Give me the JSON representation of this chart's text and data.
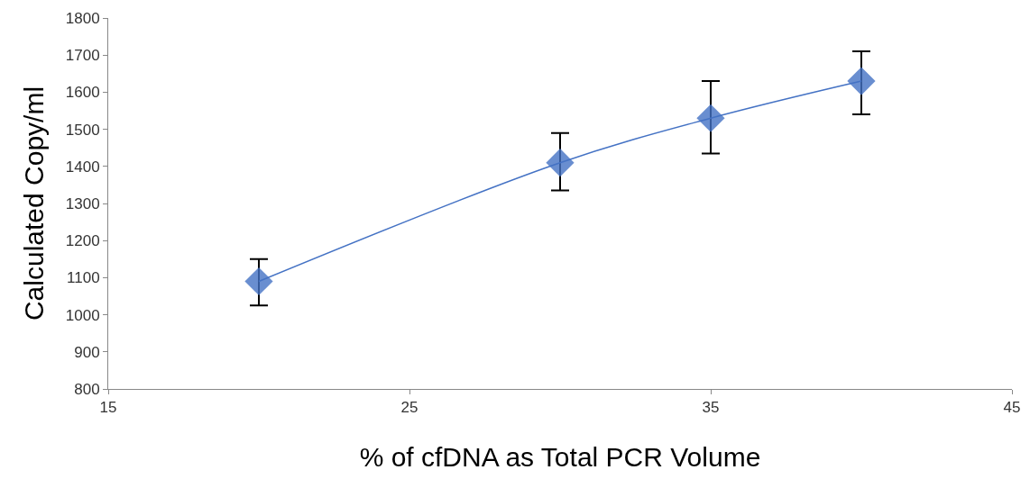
{
  "chart_data": {
    "type": "line",
    "xlabel": "% of cfDNA as Total PCR Volume",
    "ylabel": "Calculated Copy/ml",
    "x": [
      20,
      30,
      35,
      40
    ],
    "series": [
      {
        "color": "#4472c4",
        "values": [
          1090,
          1410,
          1530,
          1630
        ],
        "errors": [
          [
            1025,
            1150
          ],
          [
            1335,
            1490
          ],
          [
            1435,
            1630
          ],
          [
            1540,
            1710
          ]
        ]
      }
    ],
    "xlim": [
      15,
      45
    ],
    "xticks": [
      15,
      25,
      35,
      45
    ],
    "ylim": [
      800,
      1800
    ],
    "yticks": [
      800,
      900,
      1000,
      1100,
      1200,
      1300,
      1400,
      1500,
      1600,
      1700,
      1800
    ],
    "grid": false,
    "marker": "diamond",
    "line_style": "solid",
    "legend": false
  }
}
